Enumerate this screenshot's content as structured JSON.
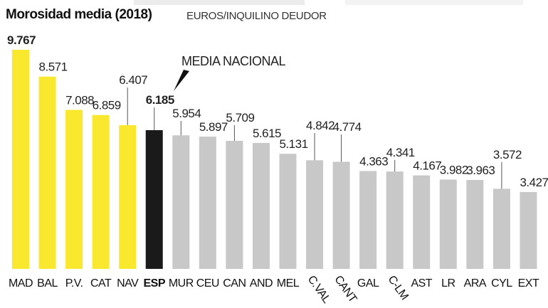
{
  "chart_data": {
    "type": "bar",
    "title": "Morosidad media (2018)",
    "subtitle": "EUROS/INQUILINO DEUDOR",
    "annotation": "MEDIA NACIONAL",
    "categories": [
      "MAD",
      "BAL",
      "P.V.",
      "CAT",
      "NAV",
      "ESP",
      "MUR",
      "CEU",
      "CAN",
      "AND",
      "MEL",
      "C.VAL",
      "CANT",
      "GAL",
      "C-LM",
      "AST",
      "LR",
      "ARA",
      "CYL",
      "EXT"
    ],
    "values": [
      9767,
      8571,
      7088,
      6859,
      6407,
      6185,
      5954,
      5897,
      5709,
      5615,
      5131,
      4842,
      4774,
      4363,
      4341,
      4167,
      3982,
      3963,
      3572,
      3427
    ],
    "labels": [
      "9.767",
      "8.571",
      "7.088",
      "6.859",
      "6.407",
      "6.185",
      "5.954",
      "5.897",
      "5.709",
      "5.615",
      "5.131",
      "4.842",
      "4.774",
      "4.363",
      "4.341",
      "4.167",
      "3.982",
      "3.963",
      "3.572",
      "3.427"
    ],
    "colors": {
      "above_average": "#f9e82d",
      "national": "#1a1a1a",
      "below_average": "#c8c8c8"
    },
    "ylim": [
      0,
      9767
    ],
    "grid": false,
    "legend": "none"
  }
}
